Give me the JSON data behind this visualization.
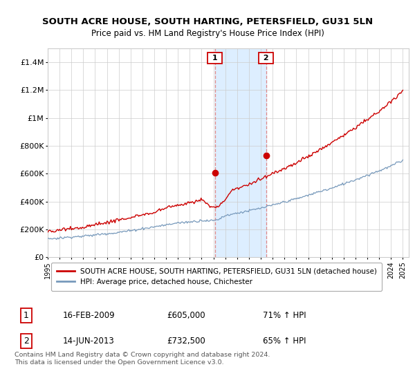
{
  "title": "SOUTH ACRE HOUSE, SOUTH HARTING, PETERSFIELD, GU31 5LN",
  "subtitle": "Price paid vs. HM Land Registry's House Price Index (HPI)",
  "ylim": [
    0,
    1500000
  ],
  "yticks": [
    0,
    200000,
    400000,
    600000,
    800000,
    1000000,
    1200000,
    1400000
  ],
  "ytick_labels": [
    "£0",
    "£200K",
    "£400K",
    "£600K",
    "£800K",
    "£1M",
    "£1.2M",
    "£1.4M"
  ],
  "xlim_start": 1995.0,
  "xlim_end": 2025.5,
  "xticks": [
    1995,
    1996,
    1997,
    1998,
    1999,
    2000,
    2001,
    2002,
    2003,
    2004,
    2005,
    2006,
    2007,
    2008,
    2009,
    2010,
    2011,
    2012,
    2013,
    2014,
    2015,
    2016,
    2017,
    2018,
    2019,
    2020,
    2021,
    2022,
    2023,
    2024,
    2025
  ],
  "sale1_date": 2009.12,
  "sale1_price": 605000,
  "sale1_label": "1",
  "sale2_date": 2013.45,
  "sale2_price": 732500,
  "sale2_label": "2",
  "red_line_color": "#cc0000",
  "blue_line_color": "#7799bb",
  "shade_color": "#ddeeff",
  "dashed_line_color": "#dd8888",
  "legend_label1": "SOUTH ACRE HOUSE, SOUTH HARTING, PETERSFIELD, GU31 5LN (detached house)",
  "legend_label2": "HPI: Average price, detached house, Chichester",
  "table_row1": [
    "1",
    "16-FEB-2009",
    "£605,000",
    "71% ↑ HPI"
  ],
  "table_row2": [
    "2",
    "14-JUN-2013",
    "£732,500",
    "65% ↑ HPI"
  ],
  "footer": "Contains HM Land Registry data © Crown copyright and database right 2024.\nThis data is licensed under the Open Government Licence v3.0.",
  "background_color": "#ffffff",
  "grid_color": "#cccccc"
}
